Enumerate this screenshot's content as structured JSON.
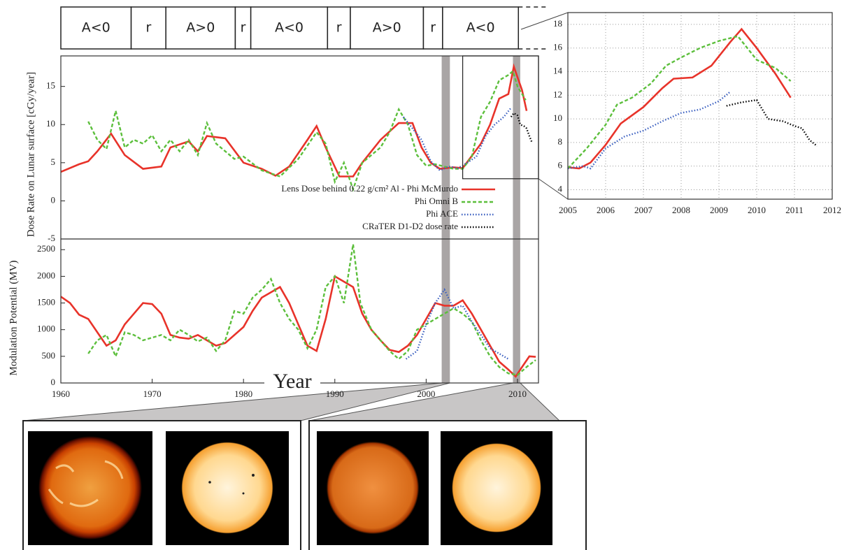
{
  "chart_data": [
    {
      "type": "line",
      "ylabel": "Dose Rate on Lunar surface [cGy/year]",
      "xlim": [
        1960,
        2012.3
      ],
      "ylim": [
        -5,
        19
      ],
      "yticks": [
        -5,
        0,
        5,
        10,
        15
      ],
      "highlights": [
        [
          2001.7,
          2002.6
        ],
        [
          2009.5,
          2010.3
        ]
      ],
      "polarity": [
        {
          "label": "A<0",
          "start": 1960,
          "end": 1967.7
        },
        {
          "label": "r",
          "start": 1967.7,
          "end": 1971.5
        },
        {
          "label": "A>0",
          "start": 1971.5,
          "end": 1979.1
        },
        {
          "label": "r",
          "start": 1979.1,
          "end": 1980.8
        },
        {
          "label": "A<0",
          "start": 1980.8,
          "end": 1989.2
        },
        {
          "label": "r",
          "start": 1989.2,
          "end": 1991.7
        },
        {
          "label": "A>0",
          "start": 1991.7,
          "end": 1999.7
        },
        {
          "label": "r",
          "start": 1999.7,
          "end": 2001.8
        },
        {
          "label": "A<0",
          "start": 2001.8,
          "end": 2010.1
        }
      ],
      "inset_region": {
        "x": [
          2004,
          2012.3
        ],
        "y": [
          2.9,
          19
        ]
      },
      "legend": "lower right",
      "series": [
        {
          "name": "Lens Dose behind 0.22 g/cm² Al - Phi McMurdo",
          "color": "#e8332a",
          "style": "solid",
          "x": [
            1960,
            1962,
            1963,
            1964,
            1965.5,
            1967,
            1969,
            1971,
            1972,
            1974,
            1975,
            1976,
            1978,
            1980,
            1982,
            1983.5,
            1985,
            1987,
            1988,
            1989,
            1990.5,
            1992,
            1993,
            1995,
            1997,
            1998.5,
            1999.5,
            2000.5,
            2001.5,
            2003,
            2004,
            2005,
            2006,
            2007,
            2008,
            2009,
            2009.6,
            2010.5,
            2011
          ],
          "values": [
            3.8,
            4.8,
            5.2,
            6.5,
            8.8,
            6,
            4.2,
            4.5,
            7,
            7.8,
            6.5,
            8.5,
            8.2,
            5,
            4.2,
            3.3,
            4.5,
            8,
            9.8,
            7,
            3.2,
            3.2,
            5,
            8,
            10.2,
            10.2,
            7,
            5,
            4.2,
            4.4,
            4.3,
            5.9,
            7.5,
            10,
            13.4,
            14,
            17.6,
            14.5,
            11.8
          ]
        },
        {
          "name": "Phi  Omni B",
          "color": "#5cbf3c",
          "style": "dashed",
          "x": [
            1963,
            1964,
            1965,
            1966,
            1967,
            1968,
            1969,
            1970,
            1971,
            1972,
            1973,
            1974,
            1975,
            1976,
            1977,
            1979,
            1980,
            1982,
            1984,
            1986,
            1988,
            1989,
            1990,
            1991,
            1992,
            1993,
            1995,
            1996,
            1997,
            1998,
            1999,
            2000,
            2001,
            2003,
            2004,
            2005,
            2006,
            2007,
            2008,
            2009,
            2009.5,
            2010,
            2010.9
          ],
          "values": [
            10.4,
            8,
            6.8,
            11.8,
            7,
            8,
            7.5,
            8.6,
            6.5,
            8,
            6.5,
            8,
            6,
            10.2,
            7.5,
            5.5,
            5.8,
            4,
            3.2,
            5.5,
            9,
            7.5,
            2.5,
            5,
            1.5,
            5,
            7,
            9,
            12,
            10,
            6,
            4.6,
            4.8,
            4.2,
            4.2,
            5.8,
            11,
            13,
            15.8,
            16.5,
            17,
            15,
            13.2
          ]
        },
        {
          "name": "Phi ACE",
          "color": "#3a5fc0",
          "style": "dotted",
          "x": [
            1997.5,
            1998.5,
            1999.5,
            2000.5,
            2001.5,
            2002.5,
            2003.5,
            2004.5,
            2005.5,
            2006.5,
            2007.5,
            2008.5,
            2009.3
          ],
          "values": [
            11,
            9.5,
            8,
            5.2,
            4,
            4.5,
            4.3,
            5,
            5.8,
            8.5,
            10,
            11,
            12.2
          ]
        },
        {
          "name": "CRaTER D1-D2 dose rate",
          "color": "#000000",
          "style": "dotted",
          "x": [
            2009.3,
            2009.6,
            2010,
            2010.3,
            2010.7,
            2011,
            2011.3,
            2011.6
          ],
          "values": [
            11,
            11.5,
            11.2,
            10,
            9.8,
            9.5,
            8.5,
            7.6
          ]
        }
      ]
    },
    {
      "type": "line",
      "ylabel": "Modulation Potential (MV)",
      "xlabel": "Year",
      "xlim": [
        1960,
        2012.3
      ],
      "ylim": [
        0,
        2700
      ],
      "xticks": [
        1960,
        1970,
        1980,
        1990,
        2000,
        2010
      ],
      "yticks": [
        0,
        500,
        1000,
        1500,
        2000,
        2500
      ],
      "highlights": [
        [
          2001.7,
          2002.6
        ],
        [
          2009.5,
          2010.3
        ]
      ],
      "series": [
        {
          "color": "#e8332a",
          "style": "solid",
          "x": [
            1960,
            1961,
            1962,
            1963,
            1964,
            1965,
            1966,
            1967,
            1968,
            1969,
            1970,
            1971,
            1972,
            1973,
            1974,
            1975,
            1976,
            1977,
            1978,
            1980,
            1981,
            1982,
            1983,
            1984,
            1985,
            1986,
            1987,
            1988,
            1989,
            1990,
            1991,
            1992,
            1993,
            1994,
            1995,
            1996,
            1997,
            1998,
            1999,
            2000,
            2001,
            2002,
            2003,
            2004,
            2005,
            2006,
            2007,
            2008,
            2009,
            2009.8,
            2010.5,
            2011.3,
            2012
          ],
          "values": [
            1620,
            1500,
            1280,
            1200,
            950,
            700,
            800,
            1100,
            1300,
            1500,
            1480,
            1300,
            900,
            850,
            830,
            900,
            800,
            700,
            750,
            1050,
            1350,
            1600,
            1700,
            1800,
            1500,
            1100,
            700,
            600,
            1200,
            2000,
            1900,
            1800,
            1300,
            1000,
            800,
            620,
            580,
            700,
            900,
            1200,
            1500,
            1450,
            1450,
            1550,
            1300,
            1000,
            700,
            400,
            250,
            120,
            300,
            500,
            490
          ]
        },
        {
          "color": "#5cbf3c",
          "style": "dashed",
          "x": [
            1963,
            1964,
            1965,
            1966,
            1967,
            1968,
            1969,
            1970,
            1971,
            1972,
            1973,
            1974,
            1975,
            1976,
            1977,
            1978,
            1979,
            1980,
            1981,
            1982,
            1983,
            1984,
            1985,
            1986,
            1987,
            1988,
            1989,
            1990,
            1991,
            1992,
            1992.8,
            1994,
            1995,
            1996,
            1997,
            1998,
            1999,
            2000,
            2001,
            2002,
            2003,
            2004,
            2005,
            2006,
            2007,
            2008,
            2009,
            2010,
            2011,
            2012
          ],
          "values": [
            550,
            800,
            900,
            500,
            950,
            900,
            800,
            850,
            900,
            800,
            1000,
            900,
            780,
            850,
            600,
            800,
            1350,
            1300,
            1600,
            1750,
            1950,
            1500,
            1200,
            1000,
            650,
            1000,
            1800,
            2000,
            1500,
            2600,
            1500,
            1000,
            800,
            600,
            450,
            600,
            1000,
            1100,
            1200,
            1300,
            1400,
            1300,
            1150,
            800,
            500,
            300,
            180,
            150,
            300,
            430
          ]
        },
        {
          "color": "#3a5fc0",
          "style": "dotted",
          "x": [
            1997.8,
            1999,
            2000,
            2001,
            2002,
            2003,
            2004,
            2005,
            2006,
            2007,
            2008,
            2009
          ],
          "values": [
            450,
            600,
            1100,
            1500,
            1750,
            1400,
            1450,
            1150,
            900,
            650,
            550,
            450
          ]
        }
      ]
    },
    {
      "type": "line",
      "grid": true,
      "xlim": [
        2005,
        2012
      ],
      "ylim": [
        3.2,
        19
      ],
      "xticks": [
        2005,
        2006,
        2007,
        2008,
        2009,
        2010,
        2011,
        2012
      ],
      "yticks": [
        4,
        6,
        8,
        10,
        12,
        14,
        16,
        18
      ],
      "series": [
        {
          "color": "#e8332a",
          "style": "solid",
          "x": [
            2005,
            2005.3,
            2005.6,
            2006,
            2006.4,
            2007,
            2007.5,
            2007.8,
            2008.3,
            2008.8,
            2009.3,
            2009.6,
            2010,
            2010.5,
            2010.9
          ],
          "values": [
            5.9,
            5.8,
            6.3,
            7.8,
            9.6,
            11,
            12.6,
            13.4,
            13.5,
            14.5,
            16.5,
            17.6,
            16,
            13.8,
            11.8
          ]
        },
        {
          "color": "#5cbf3c",
          "style": "dashed",
          "x": [
            2005,
            2005.5,
            2006,
            2006.3,
            2006.7,
            2007.2,
            2007.6,
            2008,
            2008.5,
            2009,
            2009.5,
            2010,
            2010.5,
            2010.9
          ],
          "values": [
            5.8,
            7.5,
            9.5,
            11.2,
            11.8,
            13,
            14.5,
            15.2,
            16,
            16.6,
            17,
            15,
            14.3,
            13.2
          ]
        },
        {
          "color": "#3a5fc0",
          "style": "dotted",
          "x": [
            2005,
            2005.4,
            2005.6,
            2006,
            2006.5,
            2007,
            2007.5,
            2008,
            2008.5,
            2009,
            2009.3
          ],
          "values": [
            5.8,
            6,
            5.8,
            7.5,
            8.5,
            9,
            9.8,
            10.5,
            10.8,
            11.5,
            12.3
          ]
        },
        {
          "color": "#000000",
          "style": "dotted",
          "x": [
            2009.2,
            2009.6,
            2010,
            2010.3,
            2010.7,
            2011,
            2011.2,
            2011.4,
            2011.6
          ],
          "values": [
            11.1,
            11.4,
            11.6,
            10,
            9.8,
            9.4,
            9.2,
            8.2,
            7.7
          ]
        }
      ]
    }
  ]
}
